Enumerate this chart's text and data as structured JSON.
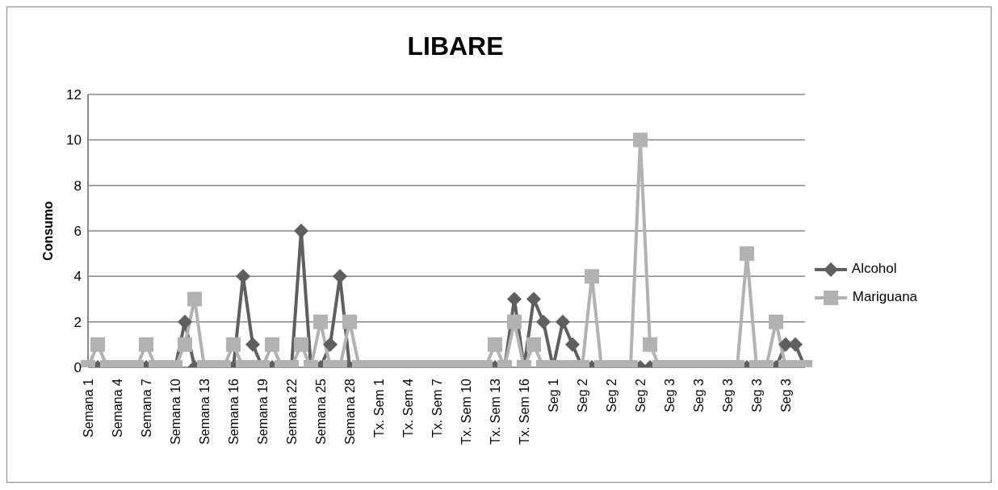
{
  "chart_data": {
    "type": "line",
    "title": "LIBARE",
    "ylabel": "Consumo",
    "categories": [
      "Semana 1",
      null,
      null,
      "Semana 4",
      null,
      null,
      "Semana 7",
      null,
      null,
      "Semana 10",
      null,
      null,
      "Semana 13",
      null,
      null,
      "Semana 16",
      null,
      null,
      "Semana 19",
      null,
      null,
      "Semana 22",
      null,
      null,
      "Semana 25",
      null,
      null,
      "Semana 28",
      null,
      null,
      "Tx. Sem 1",
      null,
      null,
      "Tx. Sem 4",
      null,
      null,
      "Tx. Sem 7",
      null,
      null,
      "Tx. Sem 10",
      null,
      null,
      "Tx. Sem 13",
      null,
      null,
      "Tx. Sem 16",
      null,
      null,
      "Seg 1",
      null,
      null,
      "Seg 2",
      null,
      null,
      "Seg 2",
      null,
      null,
      "Seg 2",
      null,
      null,
      "Seg 3",
      null,
      null,
      "Seg 3",
      null,
      null,
      "Seg 3",
      null,
      null,
      "Seg 3",
      null,
      null,
      "Seg 3",
      null,
      null
    ],
    "series": [
      {
        "name": "Alcohol",
        "color": "#5f5f5f",
        "marker": "diamond",
        "values": [
          0,
          0,
          0,
          0,
          0,
          0,
          0,
          0,
          0,
          0,
          2,
          0,
          0,
          0,
          0,
          0,
          4,
          1,
          0,
          0,
          0,
          0,
          6,
          0,
          0,
          1,
          4,
          0,
          0,
          0,
          0,
          0,
          0,
          0,
          0,
          0,
          0,
          0,
          0,
          0,
          0,
          0,
          0,
          0,
          3,
          0,
          3,
          2,
          0,
          2,
          1,
          0,
          0,
          0,
          0,
          0,
          0,
          0,
          0,
          0,
          0,
          0,
          0,
          0,
          0,
          0,
          0,
          0,
          0,
          0,
          0,
          0,
          1,
          1,
          0
        ]
      },
      {
        "name": "Mariguana",
        "color": "#b2b2b2",
        "marker": "square",
        "values": [
          0,
          1,
          0,
          0,
          0,
          0,
          1,
          0,
          0,
          0,
          1,
          3,
          0,
          0,
          0,
          1,
          0,
          0,
          0,
          1,
          0,
          0,
          1,
          0,
          2,
          0,
          0,
          2,
          0,
          0,
          0,
          0,
          0,
          0,
          0,
          0,
          0,
          0,
          0,
          0,
          0,
          0,
          1,
          0,
          2,
          0,
          1,
          0,
          0,
          0,
          0,
          0,
          4,
          0,
          0,
          0,
          0,
          10,
          1,
          0,
          0,
          0,
          0,
          0,
          0,
          0,
          0,
          0,
          5,
          0,
          0,
          2,
          0,
          0,
          0
        ]
      }
    ],
    "ylim": [
      0,
      12
    ],
    "yticks": [
      0,
      2,
      4,
      6,
      8,
      10,
      12
    ],
    "grid": "y",
    "legend": "right"
  }
}
